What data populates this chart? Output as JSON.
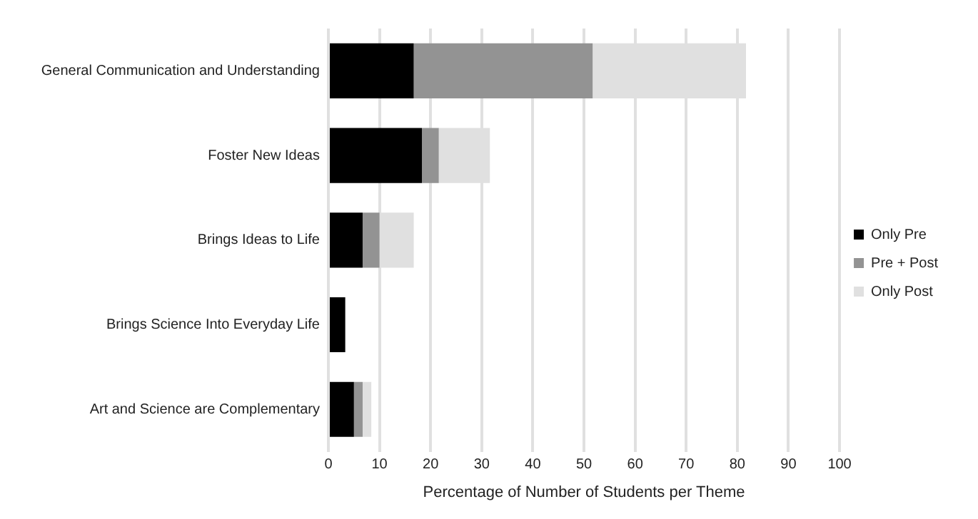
{
  "chart_data": {
    "type": "bar",
    "orientation": "horizontal",
    "stacked": true,
    "xlabel": "Percentage of Number of Students per Theme",
    "categories": [
      "General Communication and Understanding",
      "Foster New Ideas",
      "Brings Ideas to Life",
      "Brings Science Into Everyday Life",
      "Art and Science are Complementary"
    ],
    "series": [
      {
        "name": "Only Pre",
        "color": "#000000",
        "values": [
          16.7,
          18.3,
          6.7,
          3.3,
          5.0
        ]
      },
      {
        "name": "Pre + Post",
        "color": "#939393",
        "values": [
          35.0,
          3.3,
          3.3,
          0,
          1.7
        ]
      },
      {
        "name": "Only Post",
        "color": "#e0e0e0",
        "values": [
          30.0,
          10.0,
          6.7,
          0,
          1.7
        ]
      }
    ],
    "xlim": [
      0,
      100
    ],
    "xticks": [
      0,
      10,
      20,
      30,
      40,
      50,
      60,
      70,
      80,
      90,
      100
    ],
    "grid": "x",
    "legend": "right"
  }
}
